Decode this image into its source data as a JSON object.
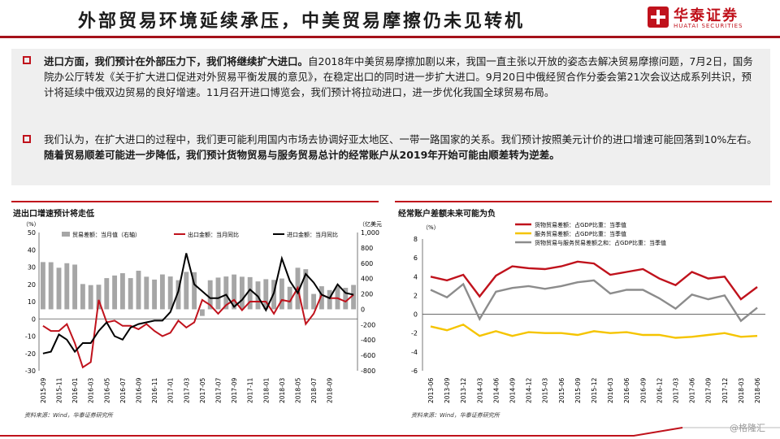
{
  "header": {
    "title": "外部贸易环境延续承压，中美贸易摩擦仍未见转机",
    "logo_cn": "华泰证券",
    "logo_en": "HUATAI SECURITIES"
  },
  "summary": {
    "p1_bold": "进口方面，我们预计在外部压力下，我们将继续扩大进口。",
    "p1_rest": "自2018年中美贸易摩擦加剧以来，我国一直主张以开放的姿态去解决贸易摩擦问题，7月2日，国务院办公厅转发《关于扩大进口促进对外贸易平衡发展的意见》，在稳定出口的同时进一步扩大进口。9月20日中俄经贸合作分委会第21次会议达成系列共识，预计将延续中俄双边贸易的良好增速。11月召开进口博览会，我们预计将拉动进口，进一步优化我国全球贸易布局。",
    "p2_rest": "我们认为，在扩大进口的过程中，我们更可能利用国内市场去协调好亚太地区、一带一路国家的关系。我们预计按照美元计价的进口增速可能回落到10%左右。",
    "p2_bold": "随着贸易顺差可能进一步降低，我们预计货物贸易与服务贸易总计的经常账户从2019年开始可能由顺差转为逆差。"
  },
  "watermark": "@格隆汇",
  "colors": {
    "red": "#c0121c",
    "black": "#000000",
    "gray": "#a6a6a6",
    "yellow": "#f5c400",
    "dark_gray": "#8c8c8c"
  },
  "chart_data": [
    {
      "type": "bar+line",
      "title": "进出口增速预计将走低",
      "source": "资料来源：Wind，华泰证券研究所",
      "left_unit": "（%）",
      "right_unit": "（亿美元）",
      "ylim_left": [
        -30,
        50
      ],
      "ylim_right": [
        -800,
        1000
      ],
      "yticks_left": [
        50,
        40,
        30,
        20,
        10,
        0,
        -10,
        -20,
        -30
      ],
      "yticks_right": [
        1000,
        800,
        600,
        400,
        200,
        0,
        -200,
        -400,
        -600,
        -800
      ],
      "x_labels": [
        "2015-09",
        "2015-11",
        "2016-01",
        "2016-03",
        "2016-05",
        "2016-07",
        "2016-09",
        "2016-11",
        "2017-01",
        "2017-03",
        "2017-05",
        "2017-07",
        "2017-09",
        "2017-11",
        "2018-01",
        "2018-03",
        "2018-05",
        "2018-07",
        "2018-09"
      ],
      "bar_series": {
        "name": "贸易差额：当月值（右轴）",
        "values": [
          615,
          613,
          541,
          600,
          582,
          329,
          315,
          320,
          406,
          440,
          470,
          406,
          502,
          424,
          387,
          454,
          427,
          379,
          487,
          483,
          -87,
          378,
          413,
          427,
          453,
          424,
          419,
          363,
          392,
          383,
          401,
          293,
          541,
          522,
          200,
          300,
          250,
          300,
          280,
          317
        ]
      },
      "line_series": [
        {
          "name": "出口金额：当月同比",
          "values": [
            -4,
            -7,
            -7,
            -3,
            -14,
            -28,
            -25,
            11,
            -2,
            -1,
            -4,
            -4,
            -6,
            -3,
            -7,
            -10,
            -8,
            -1,
            -5,
            -2,
            11,
            8,
            3,
            8,
            11,
            5,
            10,
            10,
            10,
            3,
            11,
            10,
            18,
            -3,
            3,
            14,
            12,
            12,
            10,
            14
          ]
        },
        {
          "name": "进口金额：当月同比",
          "values": [
            -20,
            -19,
            -9,
            -12,
            -19,
            -14,
            -14,
            -7,
            -2,
            -10,
            -12,
            -5,
            -3,
            -2,
            -1,
            -1,
            4,
            16,
            38,
            20,
            16,
            12,
            12,
            14,
            7,
            11,
            17,
            13,
            5,
            15,
            35,
            22,
            15,
            26,
            21,
            14,
            12,
            20,
            15,
            14
          ]
        }
      ]
    },
    {
      "type": "line",
      "title": "经常账户差额未来可能为负",
      "source": "资料来源：Wind，华泰证券研究所",
      "unit": "（%）",
      "ylim": [
        -6,
        8
      ],
      "yticks": [
        8,
        6,
        4,
        2,
        0,
        -2,
        -4,
        -6
      ],
      "x_labels": [
        "2013-06",
        "2013-09",
        "2013-12",
        "2014-03",
        "2014-06",
        "2014-09",
        "2014-12",
        "2015-03",
        "2015-06",
        "2015-09",
        "2015-12",
        "2016-03",
        "2016-06",
        "2016-09",
        "2016-12",
        "2017-03",
        "2017-06",
        "2017-09",
        "2017-12",
        "2018-03",
        "2018-06"
      ],
      "series": [
        {
          "name": "货物贸易差额：占GDP比重：当季值",
          "values": [
            4.0,
            3.6,
            4.2,
            1.9,
            4.1,
            5.1,
            4.9,
            4.8,
            5.1,
            5.6,
            5.4,
            4.2,
            4.5,
            4.8,
            3.8,
            3.1,
            4.5,
            3.8,
            4.0,
            1.6,
            2.9
          ]
        },
        {
          "name": "服务贸易差额：占GDP比重：当季值",
          "values": [
            -1.3,
            -1.7,
            -1.1,
            -2.3,
            -1.8,
            -2.3,
            -1.9,
            -2.0,
            -2.0,
            -2.2,
            -1.8,
            -2.0,
            -1.9,
            -2.2,
            -2.2,
            -2.5,
            -2.4,
            -2.2,
            -2.0,
            -2.4,
            -2.3
          ]
        },
        {
          "name": "货物贸易与服务贸易差额之和：占GDP比重：当季值",
          "values": [
            2.6,
            1.8,
            3.2,
            -0.5,
            2.4,
            2.8,
            3.0,
            2.7,
            3.0,
            3.4,
            3.6,
            2.2,
            2.6,
            2.6,
            1.7,
            0.6,
            2.1,
            1.6,
            2.0,
            -0.7,
            0.7
          ]
        }
      ]
    }
  ]
}
